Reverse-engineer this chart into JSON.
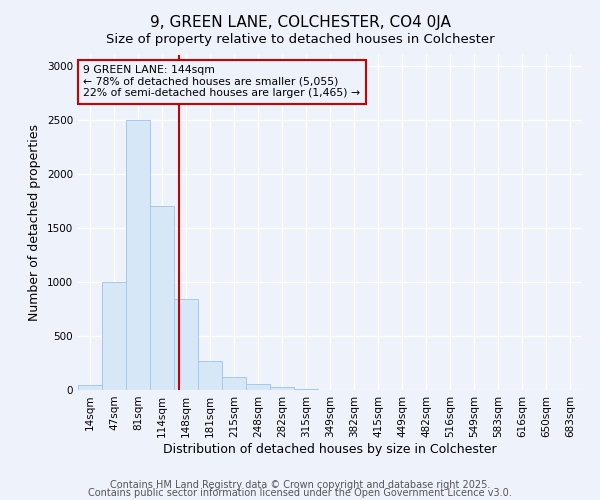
{
  "title": "9, GREEN LANE, COLCHESTER, CO4 0JA",
  "subtitle": "Size of property relative to detached houses in Colchester",
  "xlabel": "Distribution of detached houses by size in Colchester",
  "ylabel": "Number of detached properties",
  "footnote1": "Contains HM Land Registry data © Crown copyright and database right 2025.",
  "footnote2": "Contains public sector information licensed under the Open Government Licence v3.0.",
  "bar_labels": [
    "14sqm",
    "47sqm",
    "81sqm",
    "114sqm",
    "148sqm",
    "181sqm",
    "215sqm",
    "248sqm",
    "282sqm",
    "315sqm",
    "349sqm",
    "382sqm",
    "415sqm",
    "449sqm",
    "482sqm",
    "516sqm",
    "549sqm",
    "583sqm",
    "616sqm",
    "650sqm",
    "683sqm"
  ],
  "bar_values": [
    50,
    1000,
    2500,
    1700,
    840,
    270,
    120,
    55,
    30,
    5,
    2,
    0,
    0,
    0,
    0,
    0,
    0,
    0,
    0,
    0,
    0
  ],
  "bar_color": "#d6e8f7",
  "bar_edge_color": "#a8c8e8",
  "vline_x_index": 3.72,
  "vline_color": "#cc0000",
  "annotation_line1": "9 GREEN LANE: 144sqm",
  "annotation_line2": "← 78% of detached houses are smaller (5,055)",
  "annotation_line3": "22% of semi-detached houses are larger (1,465) →",
  "annotation_box_color": "#cc0000",
  "ylim": [
    0,
    3100
  ],
  "yticks": [
    0,
    500,
    1000,
    1500,
    2000,
    2500,
    3000
  ],
  "background_color": "#eef2fb",
  "plot_bg_color": "#eef2fb",
  "grid_color": "#ffffff",
  "title_fontsize": 11,
  "subtitle_fontsize": 9.5,
  "axis_label_fontsize": 9,
  "tick_fontsize": 7.5,
  "footnote_fontsize": 7
}
